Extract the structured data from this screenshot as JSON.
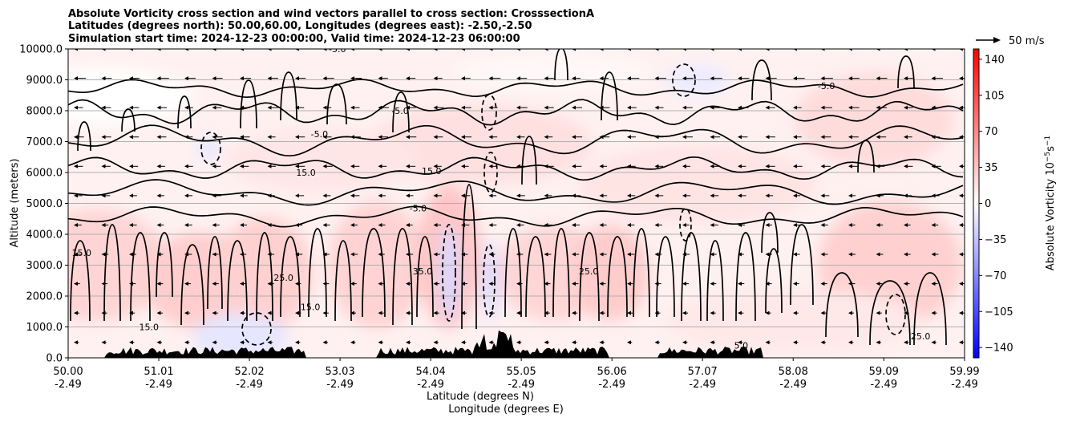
{
  "chart_data": {
    "type": "heatmap",
    "title": {
      "line1": "Absolute Vorticity cross section and wind vectors parallel to cross section: CrosssectionA",
      "line2": "Latitudes (degrees north): 50.00,60.00, Longitudes (degrees east): -2.50,-2.50",
      "line3": "Simulation start time: 2024-12-23 00:00:00, Valid time: 2024-12-23 06:00:00"
    },
    "xlabel_line1": "Latitude (degrees N)",
    "xlabel_line2": "Longitude (degrees E)",
    "ylabel": "Altitude (meters)",
    "xlim": [
      50.0,
      59.99
    ],
    "ylim": [
      0,
      10000
    ],
    "x_ticks": [
      {
        "value": 50.0,
        "lat": "50.00",
        "lon": "-2.49"
      },
      {
        "value": 51.01,
        "lat": "51.01",
        "lon": "-2.49"
      },
      {
        "value": 52.02,
        "lat": "52.02",
        "lon": "-2.49"
      },
      {
        "value": 53.03,
        "lat": "53.03",
        "lon": "-2.49"
      },
      {
        "value": 54.04,
        "lat": "54.04",
        "lon": "-2.49"
      },
      {
        "value": 55.05,
        "lat": "55.05",
        "lon": "-2.49"
      },
      {
        "value": 56.06,
        "lat": "56.06",
        "lon": "-2.49"
      },
      {
        "value": 57.07,
        "lat": "57.07",
        "lon": "-2.49"
      },
      {
        "value": 58.08,
        "lat": "58.08",
        "lon": "-2.49"
      },
      {
        "value": 59.09,
        "lat": "59.09",
        "lon": "-2.49"
      },
      {
        "value": 59.99,
        "lat": "59.99",
        "lon": "-2.49"
      }
    ],
    "y_ticks": [
      {
        "value": 0,
        "label": "0.0"
      },
      {
        "value": 1000,
        "label": "1000.0"
      },
      {
        "value": 2000,
        "label": "2000.0"
      },
      {
        "value": 3000,
        "label": "3000.0"
      },
      {
        "value": 4000,
        "label": "4000.0"
      },
      {
        "value": 5000,
        "label": "5000.0"
      },
      {
        "value": 6000,
        "label": "6000.0"
      },
      {
        "value": 7000,
        "label": "7000.0"
      },
      {
        "value": 8000,
        "label": "8000.0"
      },
      {
        "value": 9000,
        "label": "9000.0"
      },
      {
        "value": 10000,
        "label": "10000.0"
      }
    ],
    "grid": "horizontal",
    "colorbar": {
      "label": "Absolute Vorticity 10^-5 s^-1",
      "label_base": "Absolute Vorticity 10",
      "label_exp": "−5",
      "label_unit": "s",
      "label_unit_exp": "−1",
      "range": [
        -150,
        150
      ],
      "colormap": "bwr",
      "low_color": "#0000ff",
      "mid_color": "#ffffff",
      "high_color": "#ff0000",
      "ticks": [
        {
          "value": 140,
          "label": "140"
        },
        {
          "value": 105,
          "label": "105"
        },
        {
          "value": 70,
          "label": "70"
        },
        {
          "value": 35,
          "label": "35"
        },
        {
          "value": 0,
          "label": "0"
        },
        {
          "value": -35,
          "label": "−35"
        },
        {
          "value": -70,
          "label": "−70"
        },
        {
          "value": -105,
          "label": "−105"
        },
        {
          "value": -140,
          "label": "−140"
        }
      ]
    },
    "quiver_key": {
      "label": "50 m/s",
      "speed": 50
    },
    "wind_vectors": {
      "direction": "toward decreasing latitude",
      "typical_speed_ms": 10
    },
    "contour_levels": [
      -5.0,
      5.0,
      15.0,
      25.0,
      35.0
    ],
    "contour_labels": [
      {
        "text": "-5.0",
        "x": 52.8,
        "y": 7250
      },
      {
        "text": "-5.0",
        "x": 53.0,
        "y": 10000
      },
      {
        "text": "15.0",
        "x": 52.65,
        "y": 6000
      },
      {
        "text": "15.0",
        "x": 54.05,
        "y": 6050
      },
      {
        "text": "-5.0",
        "x": 53.9,
        "y": 4850
      },
      {
        "text": "-5.0",
        "x": 58.45,
        "y": 8800
      },
      {
        "text": "15.0",
        "x": 52.7,
        "y": 1650
      },
      {
        "text": "25.0",
        "x": 52.4,
        "y": 2600
      },
      {
        "text": "35.0",
        "x": 53.95,
        "y": 2800
      },
      {
        "text": "25.0",
        "x": 55.8,
        "y": 2800
      },
      {
        "text": "25.0",
        "x": 59.5,
        "y": 700
      },
      {
        "text": "15.0",
        "x": 50.15,
        "y": 3400
      },
      {
        "text": "5.0",
        "x": 57.5,
        "y": 400
      },
      {
        "text": "15.0",
        "x": 50.9,
        "y": 1000
      },
      {
        "text": "-5.0",
        "x": 53.7,
        "y": 8000
      }
    ]
  }
}
